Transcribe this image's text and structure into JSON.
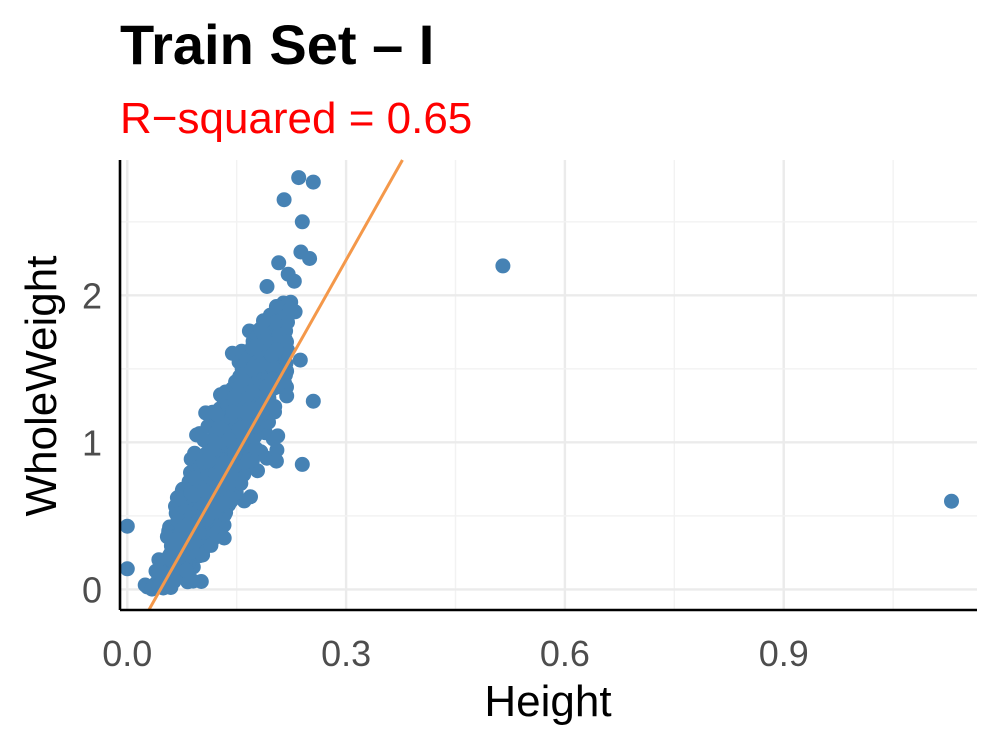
{
  "chart_data": {
    "type": "scatter",
    "title": "Train Set – I",
    "subtitle": "R−squared = 0.65",
    "xlabel": "Height",
    "ylabel": "WholeWeight",
    "xlim": [
      -0.01,
      1.165
    ],
    "ylim": [
      -0.14,
      2.92
    ],
    "x_ticks": [
      0.0,
      0.3,
      0.6,
      0.9
    ],
    "x_tick_labels": [
      "0.0",
      "0.3",
      "0.6",
      "0.9"
    ],
    "y_ticks": [
      0,
      1,
      2
    ],
    "y_tick_labels": [
      "0",
      "1",
      "2"
    ],
    "grid": true,
    "legend": "none",
    "fit_line": {
      "slope": 8.8,
      "intercept": -0.4
    },
    "outliers": [
      {
        "x": 0.0,
        "y": 0.43
      },
      {
        "x": 0.0,
        "y": 0.14
      },
      {
        "x": 0.515,
        "y": 2.2
      },
      {
        "x": 1.13,
        "y": 0.6
      },
      {
        "x": 0.235,
        "y": 2.8
      },
      {
        "x": 0.255,
        "y": 2.77
      },
      {
        "x": 0.215,
        "y": 2.65
      },
      {
        "x": 0.095,
        "y": 1.05
      },
      {
        "x": 0.24,
        "y": 0.85
      },
      {
        "x": 0.255,
        "y": 1.28
      },
      {
        "x": 0.25,
        "y": 2.25
      },
      {
        "x": 0.24,
        "y": 2.5
      }
    ],
    "cluster": {
      "n": 1400,
      "x_range": [
        0.015,
        0.25
      ],
      "slope": 10.0,
      "intercept": -0.42,
      "spread": 0.22,
      "y_min": 0.0,
      "y_max": 2.75
    }
  },
  "colors": {
    "points": "#4682b4",
    "fit_line": "#f4984a",
    "subtitle": "#ff0000"
  }
}
